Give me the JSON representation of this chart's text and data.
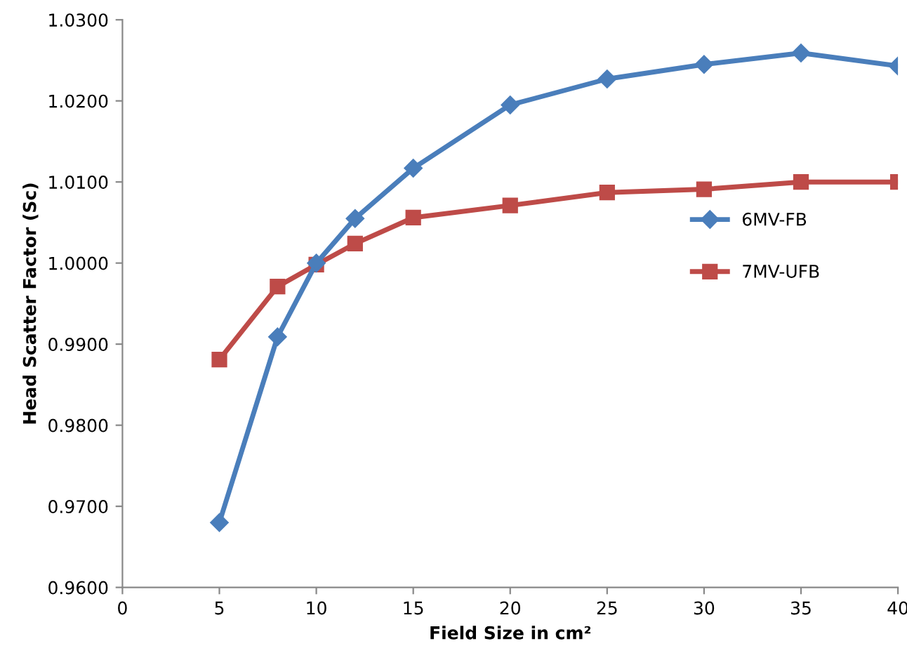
{
  "chart_data": {
    "type": "line",
    "xlabel": "Field Size in cm²",
    "ylabel": "Head Scatter Factor (Sc)",
    "x": [
      5,
      8,
      10,
      12,
      15,
      20,
      25,
      30,
      35,
      40
    ],
    "series": [
      {
        "name": "6MV-FB",
        "color": "#4a7ebb",
        "marker": "diamond",
        "values": [
          0.968,
          0.9909,
          1.0,
          1.0055,
          1.0117,
          1.0195,
          1.0227,
          1.0245,
          1.0259,
          1.0243
        ]
      },
      {
        "name": "7MV-UFB",
        "color": "#be4b48",
        "marker": "square",
        "values": [
          0.9881,
          0.9971,
          0.9998,
          1.0024,
          1.0056,
          1.0071,
          1.0087,
          1.0091,
          1.01,
          1.01
        ]
      }
    ],
    "xlim": [
      0,
      40
    ],
    "xticks": [
      0,
      5,
      10,
      15,
      20,
      25,
      30,
      35,
      40
    ],
    "ylim": [
      0.96,
      1.03
    ],
    "yticks": [
      {
        "value": 0.96,
        "label": "0.9600"
      },
      {
        "value": 0.97,
        "label": "0.9700"
      },
      {
        "value": 0.98,
        "label": "0.9800"
      },
      {
        "value": 0.99,
        "label": "0.9900"
      },
      {
        "value": 1.0,
        "label": "1.0000"
      },
      {
        "value": 1.01,
        "label": "1.0100"
      },
      {
        "value": 1.02,
        "label": "1.0200"
      },
      {
        "value": 1.03,
        "label": "1.0300"
      }
    ],
    "legend": "right",
    "grid": false,
    "line_style": "solid"
  }
}
